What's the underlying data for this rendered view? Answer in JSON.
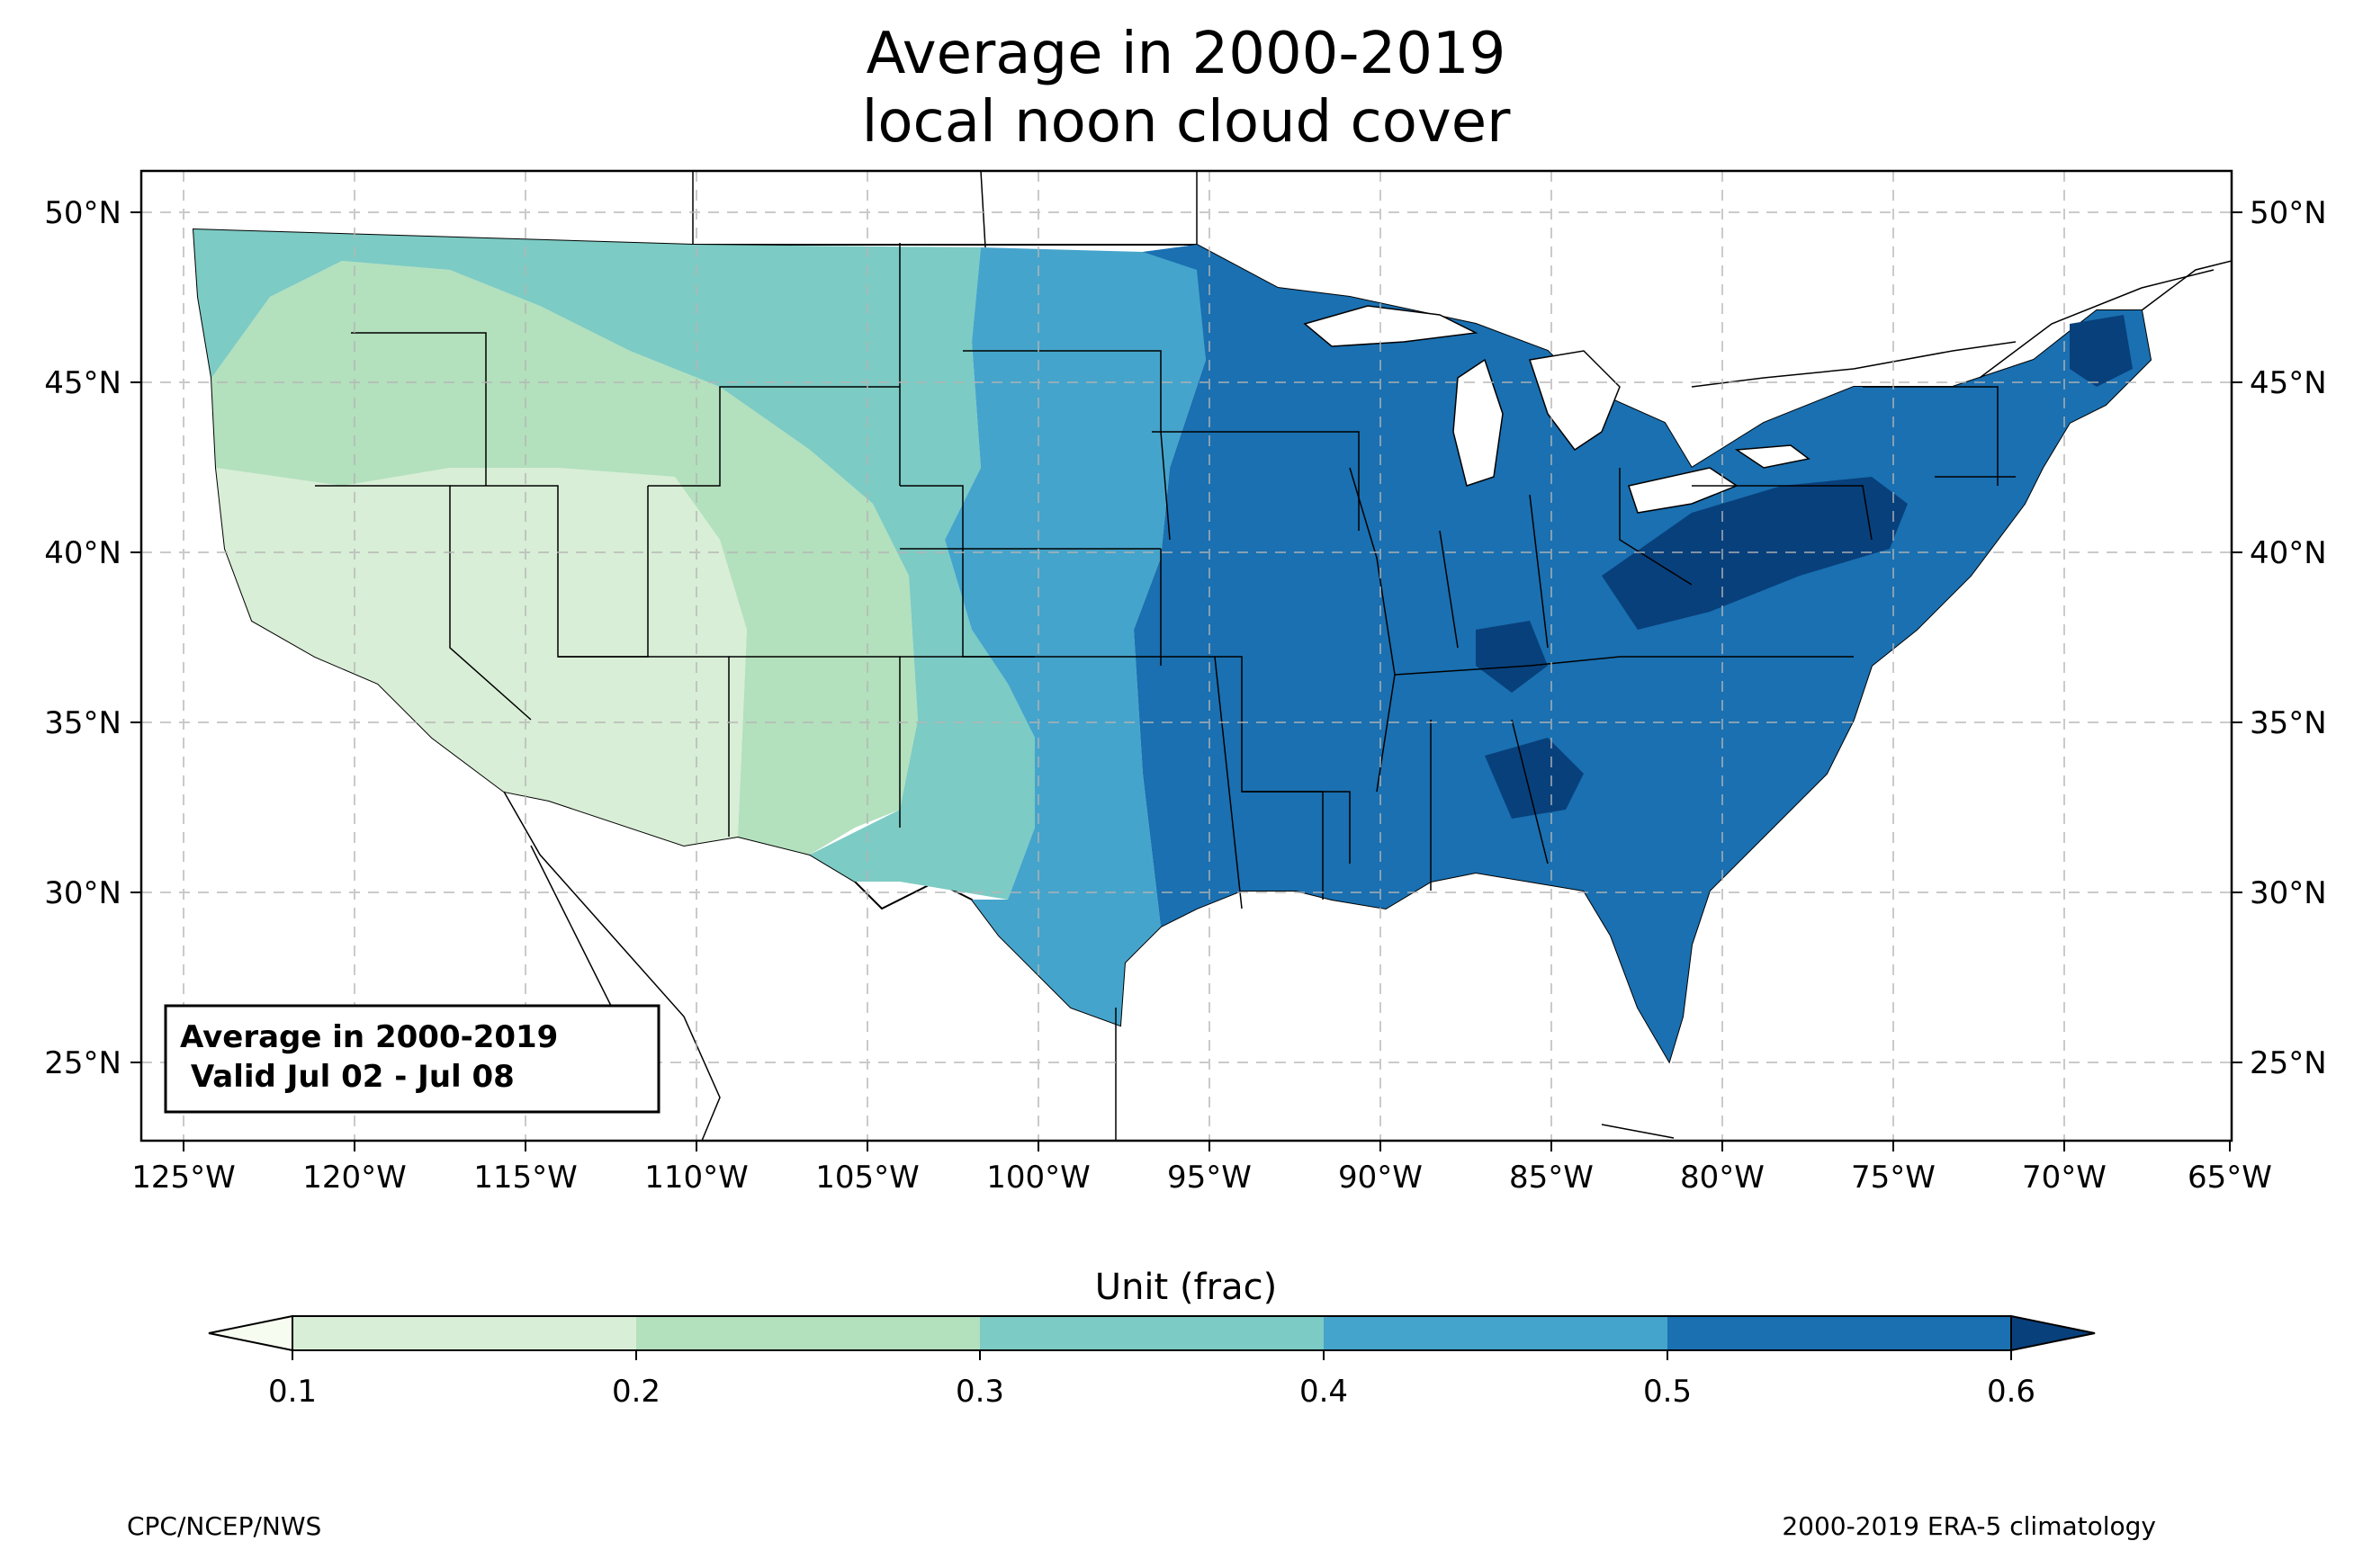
{
  "title": {
    "line1": "Average in 2000-2019",
    "line2": "local noon cloud cover"
  },
  "inset": {
    "line1": "Average in 2000-2019",
    "line2": " Valid Jul 02 - Jul 08"
  },
  "map": {
    "lon_ticks": [
      "125°W",
      "120°W",
      "115°W",
      "110°W",
      "105°W",
      "100°W",
      "95°W",
      "90°W",
      "85°W",
      "80°W",
      "75°W",
      "70°W",
      "65°W"
    ],
    "lat_ticks": [
      "50°N",
      "45°N",
      "40°N",
      "35°N",
      "30°N",
      "25°N"
    ],
    "grid": true,
    "projection": "plate carree"
  },
  "colorbar": {
    "label": "Unit (frac)",
    "ticks": [
      "0.1",
      "0.2",
      "0.3",
      "0.4",
      "0.5",
      "0.6"
    ],
    "colors": [
      "#f7fcf0",
      "#d8eed6",
      "#b3e0bd",
      "#7ccbc4",
      "#45a4cb",
      "#1a70b1",
      "#08407c"
    ],
    "extend": "both"
  },
  "footer": {
    "left": "CPC/NCEP/NWS",
    "right": "2000-2019 ERA-5 climatology"
  }
}
